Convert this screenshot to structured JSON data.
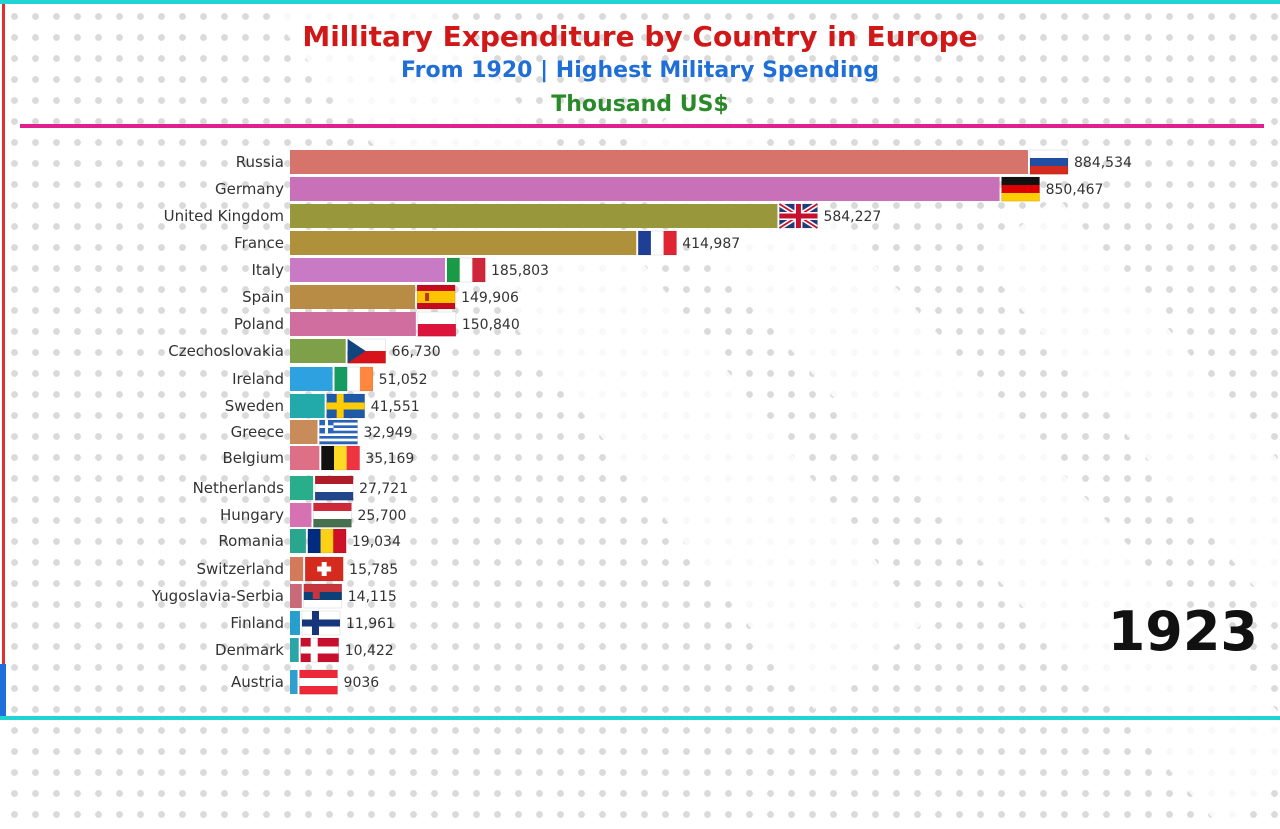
{
  "header": {
    "title": "Millitary Expenditure by Country in Europe",
    "subtitle": "From 1920 | Highest Military Spending",
    "unit": "Thousand US$"
  },
  "year": "1923",
  "chart_data": {
    "type": "bar",
    "orientation": "horizontal",
    "categories": [
      "Russia",
      "Germany",
      "United Kingdom",
      "France",
      "Italy",
      "Spain",
      "Poland",
      "Czechoslovakia",
      "Ireland",
      "Sweden",
      "Greece",
      "Belgium",
      "Netherlands",
      "Hungary",
      "Romania",
      "Switzerland",
      "Yugoslavia-Serbia",
      "Finland",
      "Denmark",
      "Austria"
    ],
    "values": [
      884534,
      850467,
      584227,
      414987,
      185803,
      149906,
      150840,
      66730,
      51052,
      41551,
      32949,
      35169,
      27721,
      25700,
      19034,
      15785,
      14115,
      11961,
      10422,
      9036
    ],
    "value_labels": [
      "884,534",
      "850,467",
      "584,227",
      "414,987",
      "185,803",
      "149,906",
      "150,840",
      "66,730",
      "51,052",
      "41,551",
      "32,949",
      "35,169",
      "27,721",
      "25,700",
      "19,034",
      "15,785",
      "14,115",
      "11,961",
      "10,422",
      "9036"
    ],
    "colors": [
      "#d6746c",
      "#c871b8",
      "#99973c",
      "#b0913b",
      "#c87ac4",
      "#b88c44",
      "#d06ea0",
      "#7ea048",
      "#2ea1e0",
      "#22aaaa",
      "#c88c5a",
      "#dd6f86",
      "#29ae8c",
      "#d772b2",
      "#2aa68f",
      "#d27a5a",
      "#c96a78",
      "#269fcf",
      "#2aa6a6",
      "#2f9fcf"
    ],
    "flags": [
      "russia-flag",
      "germany-flag",
      "uk-flag",
      "france-flag",
      "italy-flag",
      "spain-flag",
      "poland-flag",
      "czechoslovakia-flag",
      "ireland-flag",
      "sweden-flag",
      "greece-flag",
      "belgium-flag",
      "netherlands-flag",
      "hungary-flag",
      "romania-flag",
      "switzerland-flag",
      "serbia-flag",
      "finland-flag",
      "denmark-flag",
      "austria-flag"
    ]
  }
}
